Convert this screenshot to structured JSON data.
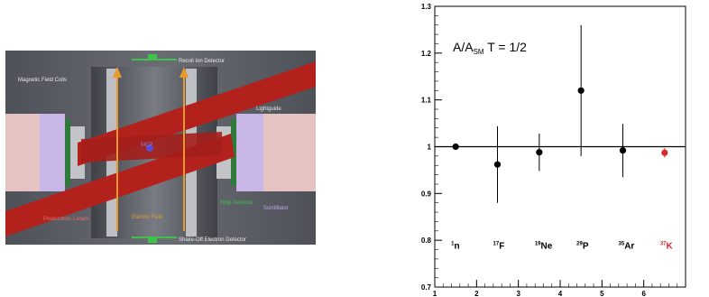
{
  "apparatus": {
    "labels": {
      "recoil_ion_detector": "Recoil Ion Detector",
      "magnetic_field_coils": "Magnetic Field Coils",
      "lightguide": "Lightguide",
      "mcp": "MCP",
      "electric_field": "Electric Field",
      "polarization_lasers": "Polarization Lasers",
      "strip_detector": "Strip Detector",
      "scintillator": "Scintillator",
      "shake_off_detector": "Shake-Off Electron Detector"
    },
    "colors": {
      "background": "#5c5f66",
      "laser": "#b3211c",
      "field_arrow": "#e89a2a",
      "scintillator": "#d8c8e8",
      "cube": "#e8c8c8"
    }
  },
  "chart_data": {
    "type": "scatter",
    "annotation": "A/A_SM   T = 1/2",
    "x": [
      1.5,
      2.5,
      3.5,
      4.5,
      5.5,
      6.5
    ],
    "y": [
      1.0,
      0.962,
      0.988,
      1.12,
      0.992,
      0.987
    ],
    "yerr_low": [
      0.0,
      0.082,
      0.04,
      0.14,
      0.057,
      0.01
    ],
    "yerr_high": [
      0.0,
      0.082,
      0.04,
      0.14,
      0.057,
      0.01
    ],
    "point_colors": [
      "#000000",
      "#000000",
      "#000000",
      "#000000",
      "#000000",
      "#d92b2b"
    ],
    "nuclide_labels": [
      {
        "mass": "1",
        "symbol": "n",
        "x": 1.5,
        "color": "#000000"
      },
      {
        "mass": "17",
        "symbol": "F",
        "x": 2.5,
        "color": "#000000"
      },
      {
        "mass": "19",
        "symbol": "Ne",
        "x": 3.5,
        "color": "#000000"
      },
      {
        "mass": "29",
        "symbol": "P",
        "x": 4.5,
        "color": "#000000"
      },
      {
        "mass": "35",
        "symbol": "Ar",
        "x": 5.5,
        "color": "#000000"
      },
      {
        "mass": "37",
        "symbol": "K",
        "x": 6.5,
        "color": "#d92b2b"
      }
    ],
    "reference_line": 1.0,
    "xlim": [
      1,
      7
    ],
    "ylim": [
      0.7,
      1.3
    ],
    "xticks": [
      "1",
      "2",
      "3",
      "4",
      "5",
      "6"
    ],
    "yticks": [
      "0.7",
      "0.8",
      "0.9",
      "1",
      "1.1",
      "1.2",
      "1.3"
    ],
    "grid": false
  }
}
